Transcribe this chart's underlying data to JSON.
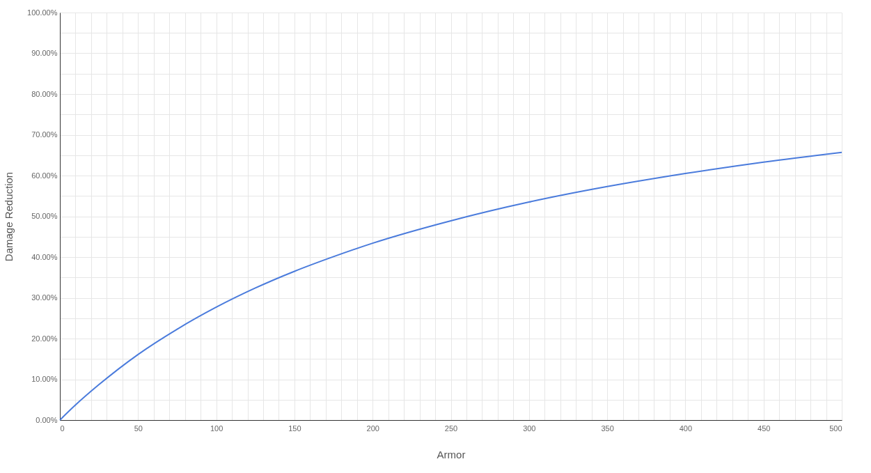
{
  "chart_data": {
    "type": "line",
    "xlabel": "Armor",
    "ylabel": "Damage Reduction",
    "x": [
      0,
      10,
      25,
      50,
      75,
      100,
      125,
      150,
      175,
      200,
      250,
      300,
      350,
      400,
      450,
      500
    ],
    "series": [
      {
        "color": "#4a7bdc",
        "values": [
          0,
          3.7,
          8.7,
          16.1,
          22.3,
          27.7,
          32.4,
          36.5,
          40.1,
          43.4,
          48.9,
          53.5,
          57.3,
          60.5,
          63.3,
          65.7
        ]
      }
    ],
    "xlim": [
      0,
      500
    ],
    "xticks": [
      0,
      {
        "value": 10,
        "label": null
      },
      {
        "value": 20,
        "label": null
      },
      {
        "value": 30,
        "label": null
      },
      {
        "value": 40,
        "label": null
      },
      50,
      {
        "value": 60,
        "label": null
      },
      {
        "value": 70,
        "label": null
      },
      {
        "value": 80,
        "label": null
      },
      {
        "value": 90,
        "label": null
      },
      100,
      {
        "value": 110,
        "label": null
      },
      {
        "value": 120,
        "label": null
      },
      {
        "value": 130,
        "label": null
      },
      {
        "value": 140,
        "label": null
      },
      150,
      {
        "value": 160,
        "label": null
      },
      {
        "value": 170,
        "label": null
      },
      {
        "value": 180,
        "label": null
      },
      {
        "value": 190,
        "label": null
      },
      200,
      {
        "value": 210,
        "label": null
      },
      {
        "value": 220,
        "label": null
      },
      {
        "value": 230,
        "label": null
      },
      {
        "value": 240,
        "label": null
      },
      250,
      {
        "value": 260,
        "label": null
      },
      {
        "value": 270,
        "label": null
      },
      {
        "value": 280,
        "label": null
      },
      {
        "value": 290,
        "label": null
      },
      300,
      {
        "value": 310,
        "label": null
      },
      {
        "value": 320,
        "label": null
      },
      {
        "value": 330,
        "label": null
      },
      {
        "value": 340,
        "label": null
      },
      350,
      {
        "value": 360,
        "label": null
      },
      {
        "value": 370,
        "label": null
      },
      {
        "value": 380,
        "label": null
      },
      {
        "value": 390,
        "label": null
      },
      400,
      {
        "value": 410,
        "label": null
      },
      {
        "value": 420,
        "label": null
      },
      {
        "value": 430,
        "label": null
      },
      {
        "value": 440,
        "label": null
      },
      450,
      {
        "value": 460,
        "label": null
      },
      {
        "value": 470,
        "label": null
      },
      {
        "value": 480,
        "label": null
      },
      {
        "value": 490,
        "label": null
      },
      500
    ],
    "ylim": [
      0,
      100
    ],
    "yticks": [
      {
        "value": 0,
        "label": "0.00%"
      },
      {
        "value": 5,
        "label": null
      },
      {
        "value": 10,
        "label": "10.00%"
      },
      {
        "value": 15,
        "label": null
      },
      {
        "value": 20,
        "label": "20.00%"
      },
      {
        "value": 25,
        "label": null
      },
      {
        "value": 30,
        "label": "30.00%"
      },
      {
        "value": 35,
        "label": null
      },
      {
        "value": 40,
        "label": "40.00%"
      },
      {
        "value": 45,
        "label": null
      },
      {
        "value": 50,
        "label": "50.00%"
      },
      {
        "value": 55,
        "label": null
      },
      {
        "value": 60,
        "label": "60.00%"
      },
      {
        "value": 65,
        "label": null
      },
      {
        "value": 70,
        "label": "70.00%"
      },
      {
        "value": 75,
        "label": null
      },
      {
        "value": 80,
        "label": "80.00%"
      },
      {
        "value": 85,
        "label": null
      },
      {
        "value": 90,
        "label": "90.00%"
      },
      {
        "value": 95,
        "label": null
      },
      {
        "value": 100,
        "label": "100.00%"
      }
    ],
    "grid": true,
    "marker": "none",
    "line_style": "solid"
  }
}
